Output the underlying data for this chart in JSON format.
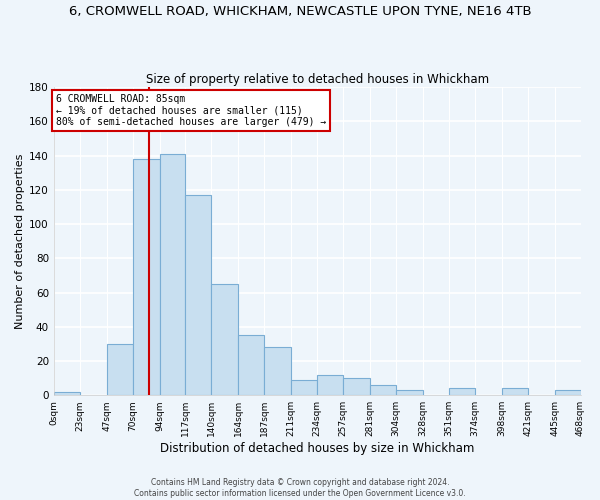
{
  "title": "6, CROMWELL ROAD, WHICKHAM, NEWCASTLE UPON TYNE, NE16 4TB",
  "subtitle": "Size of property relative to detached houses in Whickham",
  "xlabel": "Distribution of detached houses by size in Whickham",
  "ylabel": "Number of detached properties",
  "bar_edges": [
    0,
    23,
    47,
    70,
    94,
    117,
    140,
    164,
    187,
    211,
    234,
    257,
    281,
    304,
    328,
    351,
    374,
    398,
    421,
    445,
    468
  ],
  "bar_heights": [
    2,
    0,
    30,
    138,
    141,
    117,
    65,
    35,
    28,
    9,
    12,
    10,
    6,
    3,
    0,
    4,
    0,
    4,
    0,
    3
  ],
  "bar_color": "#c8dff0",
  "bar_edge_color": "#7aadd4",
  "property_line_x": 85,
  "property_line_color": "#cc0000",
  "annotation_text": "6 CROMWELL ROAD: 85sqm\n← 19% of detached houses are smaller (115)\n80% of semi-detached houses are larger (479) →",
  "annotation_box_color": "#ffffff",
  "annotation_box_edge_color": "#cc0000",
  "ylim": [
    0,
    180
  ],
  "tick_labels": [
    "0sqm",
    "23sqm",
    "47sqm",
    "70sqm",
    "94sqm",
    "117sqm",
    "140sqm",
    "164sqm",
    "187sqm",
    "211sqm",
    "234sqm",
    "257sqm",
    "281sqm",
    "304sqm",
    "328sqm",
    "351sqm",
    "374sqm",
    "398sqm",
    "421sqm",
    "445sqm",
    "468sqm"
  ],
  "footer_text": "Contains HM Land Registry data © Crown copyright and database right 2024.\nContains public sector information licensed under the Open Government Licence v3.0.",
  "background_color": "#eef5fb",
  "grid_color": "#ffffff",
  "title_fontsize": 9.5,
  "subtitle_fontsize": 8.5,
  "ylabel_fontsize": 8,
  "xlabel_fontsize": 8.5,
  "tick_fontsize": 6.5,
  "ytick_fontsize": 7.5,
  "footer_fontsize": 5.5
}
